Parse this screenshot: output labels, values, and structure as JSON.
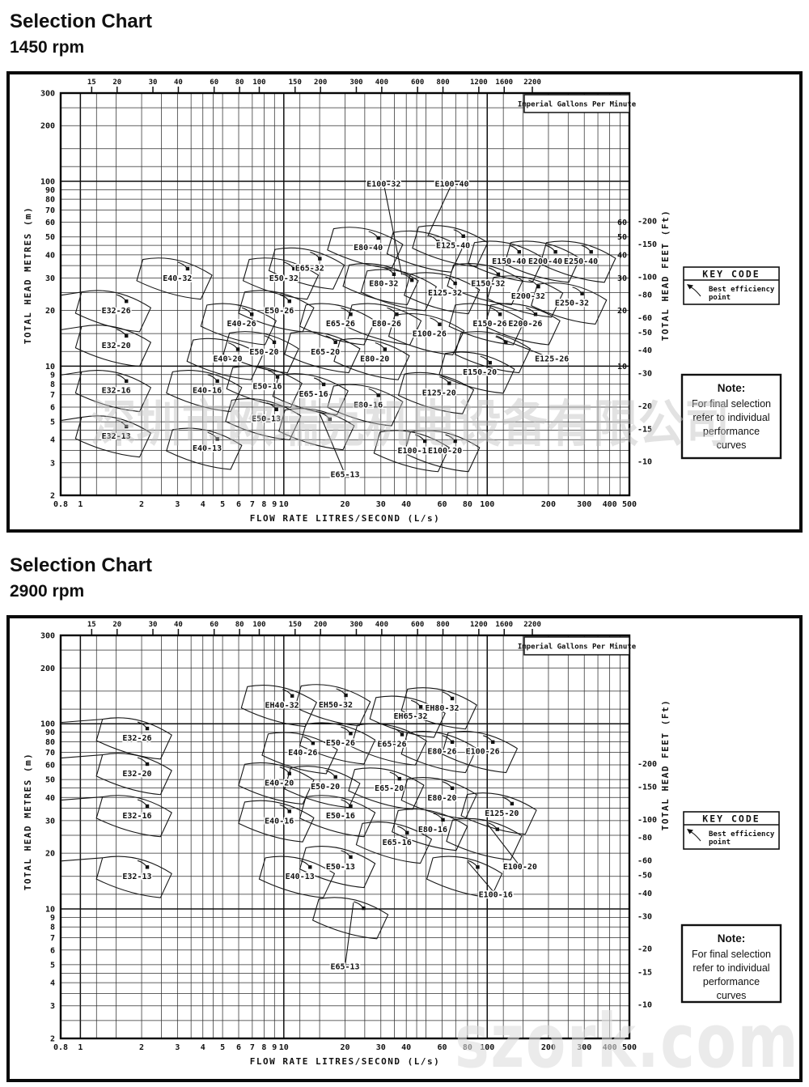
{
  "chart_data": [
    {
      "type": "line",
      "chart_kind": "pump-selection-map",
      "title": "Selection Chart",
      "subtitle": "1450 rpm",
      "x_axis": {
        "label": "FLOW RATE  LITRES/SECOND  (L/s)",
        "unit": "L/s",
        "scale": "log",
        "min": 0.8,
        "max": 500,
        "ticks": [
          0.8,
          1,
          2,
          3,
          4,
          5,
          6,
          7,
          8,
          9,
          10,
          20,
          30,
          40,
          60,
          80,
          100,
          200,
          300,
          400,
          500
        ]
      },
      "x_axis_top": {
        "label": "Imperial Gallons Per Minute",
        "scale": "log",
        "igpm_per_lps": 13.2,
        "ticks": [
          15,
          20,
          30,
          40,
          60,
          80,
          100,
          150,
          200,
          300,
          400,
          600,
          800,
          1200,
          1600,
          2200
        ]
      },
      "y_axis_left": {
        "label": "TOTAL HEAD  METRES (m)",
        "unit": "m",
        "scale": "log",
        "min": 2,
        "max": 300,
        "ticks": [
          300,
          200,
          100,
          90,
          80,
          70,
          60,
          50,
          40,
          30,
          20,
          10,
          9,
          8,
          7,
          6,
          5,
          4,
          3,
          2
        ]
      },
      "y_axis_right": {
        "label": "TOTAL HEAD  FEET (Ft)",
        "unit": "ft",
        "ticks": [
          200,
          150,
          100,
          80,
          60,
          50,
          40,
          30,
          20,
          15,
          10
        ]
      },
      "y_axis_right_metres_ticks": [
        60,
        50,
        40,
        30,
        20,
        10
      ],
      "key_code": {
        "title": "KEY CODE",
        "legend_lines": [
          "Best efficiency",
          "point"
        ]
      },
      "note": {
        "title": "Note:",
        "lines": [
          "For final selection",
          "refer to individual",
          "performance",
          "curves"
        ]
      },
      "watermark": "深圳市欧瑞克机电设备有限公司",
      "pumps": [
        {
          "model": "E32-13",
          "flow_lps": 1.5,
          "head_m": 4.2
        },
        {
          "model": "E32-16",
          "flow_lps": 1.5,
          "head_m": 7.4
        },
        {
          "model": "E32-20",
          "flow_lps": 1.5,
          "head_m": 13
        },
        {
          "model": "E32-26",
          "flow_lps": 1.5,
          "head_m": 20
        },
        {
          "model": "E40-13",
          "flow_lps": 4.2,
          "head_m": 3.6
        },
        {
          "model": "E40-16",
          "flow_lps": 4.2,
          "head_m": 7.4
        },
        {
          "model": "E40-20",
          "flow_lps": 5.3,
          "head_m": 11
        },
        {
          "model": "E40-26",
          "flow_lps": 6.2,
          "head_m": 17
        },
        {
          "model": "E40-32",
          "flow_lps": 3.0,
          "head_m": 30
        },
        {
          "model": "E50-13",
          "flow_lps": 8.2,
          "head_m": 5.2
        },
        {
          "model": "E50-16",
          "flow_lps": 8.3,
          "head_m": 7.8
        },
        {
          "model": "E50-20",
          "flow_lps": 8.0,
          "head_m": 12
        },
        {
          "model": "E50-26",
          "flow_lps": 9.5,
          "head_m": 20
        },
        {
          "model": "E50-32",
          "flow_lps": 10,
          "head_m": 30
        },
        {
          "model": "E65-13",
          "flow_lps": 15,
          "head_m": 4.6,
          "label_flow_lps": 20,
          "label_head_m": 2.6
        },
        {
          "model": "E65-16",
          "flow_lps": 14,
          "head_m": 7.1
        },
        {
          "model": "E65-20",
          "flow_lps": 16,
          "head_m": 12
        },
        {
          "model": "E65-26",
          "flow_lps": 19,
          "head_m": 17
        },
        {
          "model": "E65-32",
          "flow_lps": 13.4,
          "head_m": 34
        },
        {
          "model": "E80-16",
          "flow_lps": 26,
          "head_m": 6.2
        },
        {
          "model": "E80-20",
          "flow_lps": 28,
          "head_m": 11
        },
        {
          "model": "E80-26",
          "flow_lps": 32,
          "head_m": 17
        },
        {
          "model": "E80-32",
          "flow_lps": 31,
          "head_m": 28
        },
        {
          "model": "E80-40",
          "flow_lps": 26,
          "head_m": 44
        },
        {
          "model": "E100-16",
          "flow_lps": 44,
          "head_m": 3.5
        },
        {
          "model": "E100-20",
          "flow_lps": 62,
          "head_m": 3.5
        },
        {
          "model": "E100-26",
          "flow_lps": 52,
          "head_m": 15
        },
        {
          "model": "E100-32",
          "flow_lps": 38,
          "head_m": 26,
          "label_flow_lps": 31,
          "label_head_m": 97
        },
        {
          "model": "E100-40",
          "flow_lps": 51,
          "head_m": 42,
          "label_flow_lps": 67,
          "label_head_m": 97
        },
        {
          "model": "E125-20",
          "flow_lps": 58,
          "head_m": 7.2
        },
        {
          "model": "E125-26",
          "flow_lps": 110,
          "head_m": 12,
          "label_flow_lps": 208,
          "label_head_m": 11
        },
        {
          "model": "E125-32",
          "flow_lps": 62,
          "head_m": 25
        },
        {
          "model": "E125-40",
          "flow_lps": 68,
          "head_m": 45
        },
        {
          "model": "E150-20",
          "flow_lps": 92,
          "head_m": 9.3
        },
        {
          "model": "E150-26",
          "flow_lps": 103,
          "head_m": 17
        },
        {
          "model": "E150-32",
          "flow_lps": 101,
          "head_m": 28
        },
        {
          "model": "E150-40",
          "flow_lps": 128,
          "head_m": 37
        },
        {
          "model": "E200-26",
          "flow_lps": 154,
          "head_m": 17
        },
        {
          "model": "E200-32",
          "flow_lps": 159,
          "head_m": 24
        },
        {
          "model": "E200-40",
          "flow_lps": 193,
          "head_m": 37
        },
        {
          "model": "E250-32",
          "flow_lps": 261,
          "head_m": 22
        },
        {
          "model": "E250-40",
          "flow_lps": 289,
          "head_m": 37
        }
      ]
    },
    {
      "type": "line",
      "chart_kind": "pump-selection-map",
      "title": "Selection Chart",
      "subtitle": "2900 rpm",
      "x_axis": {
        "label": "FLOW RATE  LITRES/SECOND  (L/s)",
        "unit": "L/s",
        "scale": "log",
        "min": 0.8,
        "max": 500,
        "ticks": [
          0.8,
          1,
          2,
          3,
          4,
          5,
          6,
          7,
          8,
          9,
          10,
          20,
          30,
          40,
          60,
          80,
          100,
          200,
          300,
          400,
          500
        ]
      },
      "x_axis_top": {
        "label": "Imperial Gallons Per Minute",
        "scale": "log",
        "igpm_per_lps": 13.2,
        "ticks": [
          15,
          20,
          30,
          40,
          60,
          80,
          100,
          150,
          200,
          300,
          400,
          600,
          800,
          1200,
          1600,
          2200
        ]
      },
      "y_axis_left": {
        "label": "TOTAL HEAD  METRES (m)",
        "unit": "m",
        "scale": "log",
        "min": 2,
        "max": 300,
        "ticks": [
          300,
          200,
          100,
          90,
          80,
          70,
          60,
          50,
          40,
          30,
          20,
          10,
          9,
          8,
          7,
          6,
          5,
          4,
          3,
          2
        ]
      },
      "y_axis_right": {
        "label": "TOTAL HEAD  FEET (Ft)",
        "unit": "ft",
        "ticks": [
          200,
          150,
          100,
          80,
          60,
          50,
          40,
          30,
          20,
          15,
          10
        ]
      },
      "key_code": {
        "title": "KEY CODE",
        "legend_lines": [
          "Best efficiency",
          "point"
        ]
      },
      "note": {
        "title": "Note:",
        "lines": [
          "For final selection",
          "refer to individual",
          "performance",
          "curves"
        ]
      },
      "watermark": "szork.com",
      "pumps": [
        {
          "model": "E32-13",
          "flow_lps": 1.9,
          "head_m": 15
        },
        {
          "model": "E32-16",
          "flow_lps": 1.9,
          "head_m": 32
        },
        {
          "model": "E32-20",
          "flow_lps": 1.9,
          "head_m": 54
        },
        {
          "model": "E32-26",
          "flow_lps": 1.9,
          "head_m": 84
        },
        {
          "model": "E40-13",
          "flow_lps": 12,
          "head_m": 15
        },
        {
          "model": "E40-16",
          "flow_lps": 9.5,
          "head_m": 30
        },
        {
          "model": "E40-20",
          "flow_lps": 9.5,
          "head_m": 48
        },
        {
          "model": "E40-26",
          "flow_lps": 12.4,
          "head_m": 70
        },
        {
          "model": "E50-13",
          "flow_lps": 19,
          "head_m": 17
        },
        {
          "model": "E50-16",
          "flow_lps": 19,
          "head_m": 32
        },
        {
          "model": "E50-20",
          "flow_lps": 16,
          "head_m": 46
        },
        {
          "model": "E50-26",
          "flow_lps": 19,
          "head_m": 79
        },
        {
          "model": "E65-13",
          "flow_lps": 22,
          "head_m": 9,
          "label_flow_lps": 20,
          "label_head_m": 4.9
        },
        {
          "model": "E65-16",
          "flow_lps": 36,
          "head_m": 23
        },
        {
          "model": "E65-20",
          "flow_lps": 33,
          "head_m": 45
        },
        {
          "model": "E65-26",
          "flow_lps": 34,
          "head_m": 78
        },
        {
          "model": "E80-16",
          "flow_lps": 54,
          "head_m": 27
        },
        {
          "model": "E80-20",
          "flow_lps": 60,
          "head_m": 40
        },
        {
          "model": "E80-26",
          "flow_lps": 60,
          "head_m": 71
        },
        {
          "model": "E100-16",
          "flow_lps": 80,
          "head_m": 15,
          "label_flow_lps": 110,
          "label_head_m": 12
        },
        {
          "model": "E100-20",
          "flow_lps": 100,
          "head_m": 24,
          "label_flow_lps": 145,
          "label_head_m": 17
        },
        {
          "model": "E100-26",
          "flow_lps": 95,
          "head_m": 71
        },
        {
          "model": "E125-20",
          "flow_lps": 118,
          "head_m": 33
        },
        {
          "model": "EH40-32",
          "flow_lps": 9.8,
          "head_m": 126
        },
        {
          "model": "EH50-32",
          "flow_lps": 18,
          "head_m": 127
        },
        {
          "model": "EH65-32",
          "flow_lps": 42,
          "head_m": 110
        },
        {
          "model": "EH80-32",
          "flow_lps": 60,
          "head_m": 122
        }
      ]
    }
  ]
}
